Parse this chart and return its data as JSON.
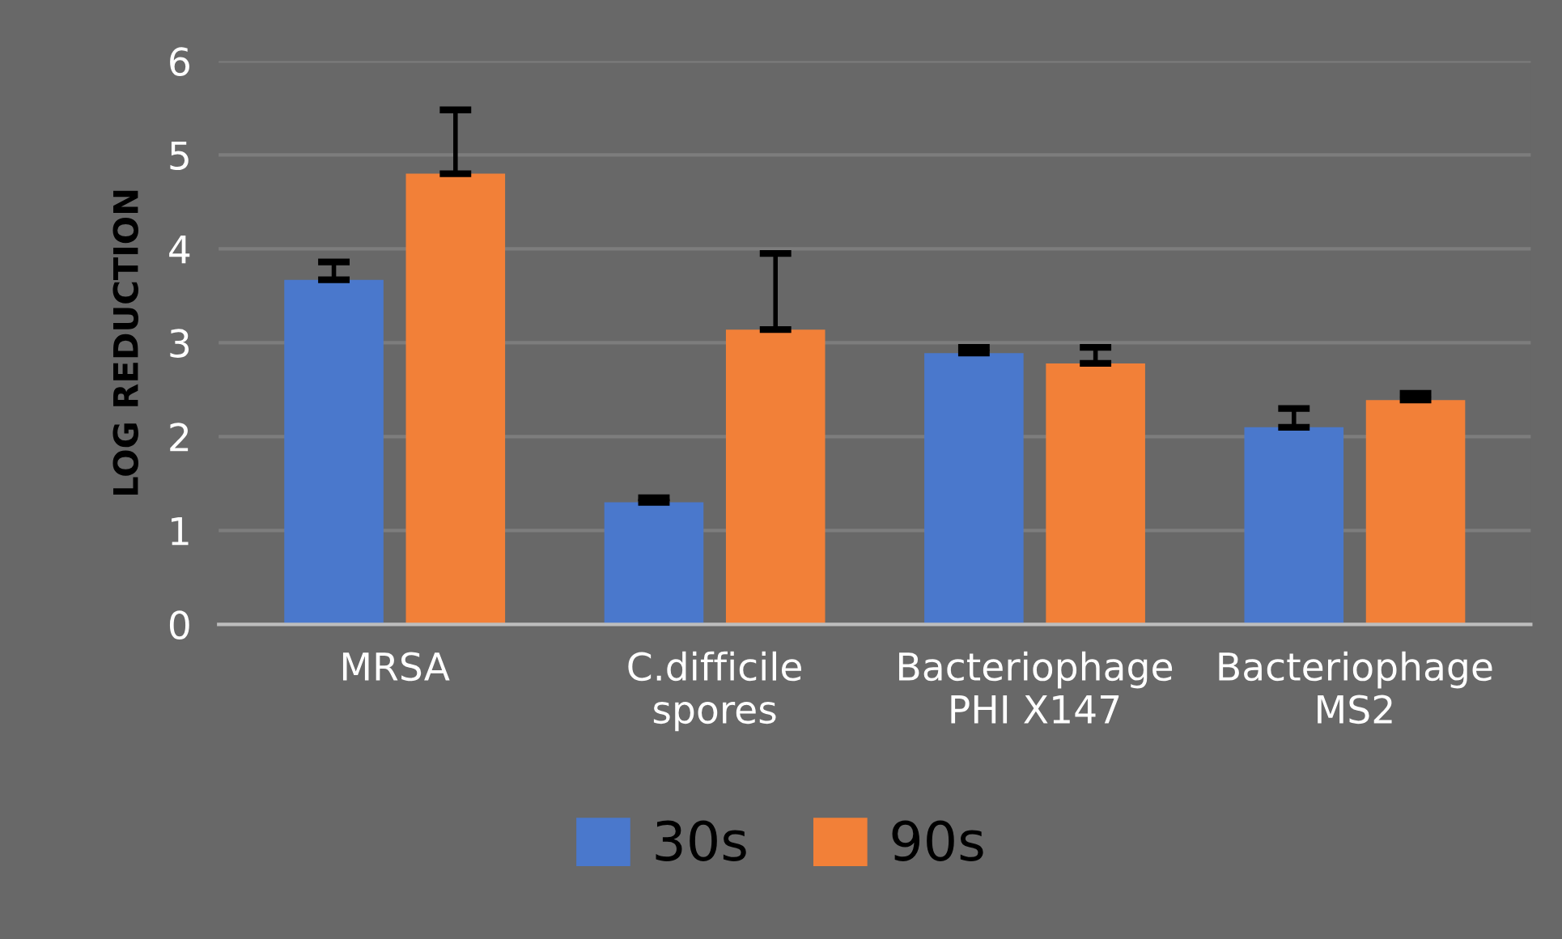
{
  "chart_data": {
    "type": "bar",
    "ylabel": "LOG REDUCTION",
    "categories": [
      "MRSA",
      "C.difficile\nspores",
      "Bacteriophage\nPHI X147",
      "Bacteriophage\nMS2"
    ],
    "series": [
      {
        "name": "30s",
        "color": "#4a78cc",
        "values": [
          3.67,
          1.3,
          2.89,
          2.1
        ],
        "errors": [
          [
            3.67,
            3.86
          ],
          [
            1.3,
            1.35
          ],
          [
            2.89,
            2.95
          ],
          [
            2.1,
            2.3
          ]
        ]
      },
      {
        "name": "90s",
        "color": "#f28038",
        "values": [
          4.8,
          3.14,
          2.78,
          2.39
        ],
        "errors": [
          [
            4.8,
            5.48
          ],
          [
            3.14,
            3.95
          ],
          [
            2.78,
            2.95
          ],
          [
            2.39,
            2.46
          ]
        ]
      }
    ],
    "ylim": [
      0,
      6
    ],
    "yticks": [
      0,
      1,
      2,
      3,
      4,
      5,
      6
    ],
    "grid": "y",
    "legend": "bottom"
  }
}
